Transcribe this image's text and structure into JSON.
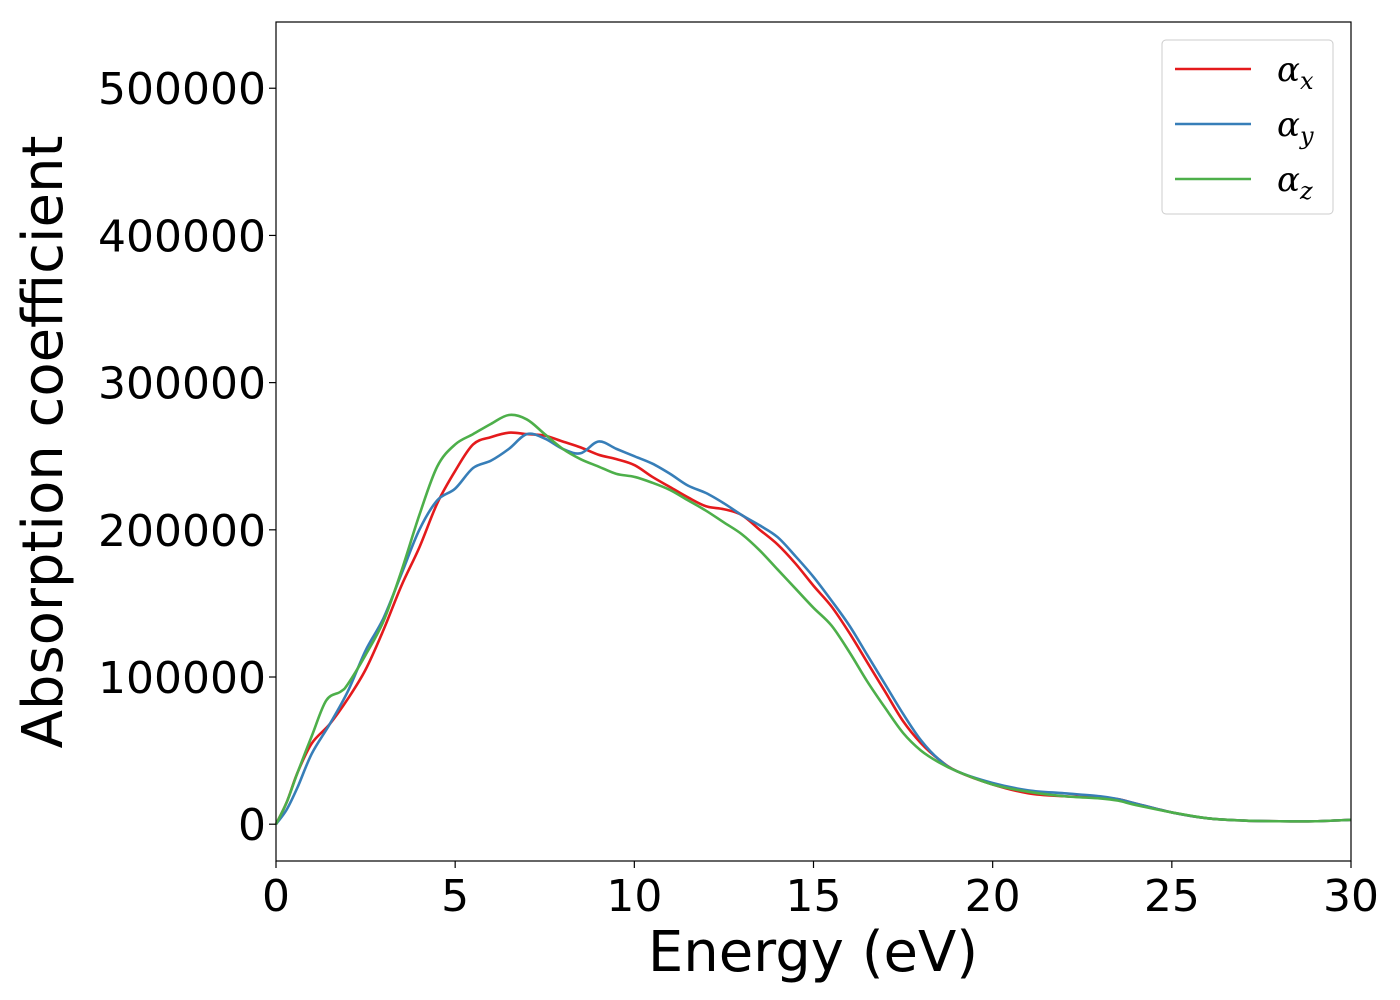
{
  "chart_data": {
    "type": "line",
    "title": "",
    "xlabel": "Energy (eV)",
    "ylabel": "Absorption coefficient",
    "xlim": [
      0,
      30
    ],
    "ylim": [
      -25000,
      545000
    ],
    "x_ticks": [
      0,
      5,
      10,
      15,
      20,
      25,
      30
    ],
    "x_tick_labels": [
      "0",
      "5",
      "10",
      "15",
      "20",
      "25",
      "30"
    ],
    "y_ticks": [
      0,
      100000,
      200000,
      300000,
      400000,
      500000
    ],
    "y_tick_labels": [
      "0",
      "100000",
      "200000",
      "300000",
      "400000",
      "500000"
    ],
    "grid": false,
    "legend": "top-right",
    "series": [
      {
        "name": "αx",
        "symbol": "α",
        "subscript": "x",
        "color": "#e41a1c",
        "x": [
          0,
          0.3,
          0.6,
          1.0,
          1.5,
          2.0,
          2.5,
          3.0,
          3.5,
          4.0,
          4.5,
          5.0,
          5.5,
          6.0,
          6.5,
          7.0,
          7.5,
          8.0,
          8.5,
          9.0,
          9.5,
          10.0,
          10.5,
          11.0,
          11.5,
          12.0,
          12.5,
          13.0,
          13.5,
          14.0,
          14.5,
          15.0,
          15.5,
          16.0,
          16.5,
          17.0,
          17.5,
          18.0,
          18.5,
          19.0,
          20.0,
          21.0,
          22.0,
          23.0,
          23.5,
          24.0,
          25.0,
          26.0,
          27.0,
          28.0,
          29.0,
          30.0
        ],
        "y": [
          0,
          15000,
          35000,
          55000,
          68000,
          85000,
          105000,
          132000,
          162000,
          188000,
          218000,
          240000,
          258000,
          263000,
          266000,
          265000,
          264000,
          260000,
          256000,
          251000,
          248000,
          244000,
          236000,
          229000,
          222000,
          216000,
          214000,
          210000,
          200000,
          190000,
          177000,
          162000,
          148000,
          130000,
          110000,
          90000,
          70000,
          55000,
          44000,
          36000,
          27000,
          21000,
          19000,
          18000,
          17000,
          14000,
          8000,
          4000,
          2500,
          2000,
          2000,
          3000
        ]
      },
      {
        "name": "αy",
        "symbol": "α",
        "subscript": "y",
        "color": "#377eb8",
        "x": [
          0,
          0.3,
          0.6,
          1.0,
          1.5,
          2.0,
          2.5,
          3.0,
          3.5,
          4.0,
          4.5,
          5.0,
          5.5,
          6.0,
          6.5,
          7.0,
          7.5,
          8.0,
          8.5,
          9.0,
          9.5,
          10.0,
          10.5,
          11.0,
          11.5,
          12.0,
          12.5,
          13.0,
          13.5,
          14.0,
          14.5,
          15.0,
          15.5,
          16.0,
          16.5,
          17.0,
          17.5,
          18.0,
          18.5,
          19.0,
          20.0,
          21.0,
          22.0,
          23.0,
          23.5,
          24.0,
          25.0,
          26.0,
          27.0,
          28.0,
          29.0,
          30.0
        ],
        "y": [
          0,
          10000,
          25000,
          48000,
          68000,
          90000,
          118000,
          140000,
          170000,
          200000,
          220000,
          228000,
          242000,
          247000,
          255000,
          265000,
          262000,
          255000,
          252000,
          260000,
          255000,
          250000,
          245000,
          238000,
          230000,
          225000,
          218000,
          210000,
          203000,
          195000,
          182000,
          168000,
          152000,
          135000,
          115000,
          95000,
          75000,
          57000,
          44000,
          36000,
          28000,
          23000,
          21000,
          19000,
          17000,
          14000,
          8000,
          4000,
          2500,
          2000,
          2000,
          3000
        ]
      },
      {
        "name": "αz",
        "symbol": "α",
        "subscript": "z",
        "color": "#4daf4a",
        "x": [
          0,
          0.3,
          0.6,
          1.0,
          1.4,
          1.8,
          2.0,
          2.5,
          3.0,
          3.5,
          4.0,
          4.5,
          5.0,
          5.5,
          6.0,
          6.5,
          7.0,
          7.5,
          8.0,
          8.5,
          9.0,
          9.5,
          10.0,
          10.5,
          11.0,
          11.5,
          12.0,
          12.5,
          13.0,
          13.5,
          14.0,
          14.5,
          15.0,
          15.5,
          16.0,
          16.5,
          17.0,
          17.5,
          18.0,
          18.5,
          19.0,
          20.0,
          21.0,
          22.0,
          23.0,
          23.5,
          24.0,
          25.0,
          26.0,
          27.0,
          28.0,
          29.0,
          30.0
        ],
        "y": [
          0,
          15000,
          35000,
          60000,
          84000,
          90000,
          95000,
          115000,
          138000,
          172000,
          210000,
          243000,
          258000,
          265000,
          272000,
          278000,
          275000,
          265000,
          255000,
          248000,
          243000,
          238000,
          236000,
          232000,
          227000,
          220000,
          213000,
          205000,
          197000,
          186000,
          173000,
          160000,
          147000,
          135000,
          117000,
          97000,
          79000,
          62000,
          50000,
          42000,
          36000,
          27000,
          22000,
          19000,
          17500,
          16000,
          13000,
          8000,
          4000,
          2500,
          2000,
          2000,
          3000
        ]
      }
    ]
  }
}
